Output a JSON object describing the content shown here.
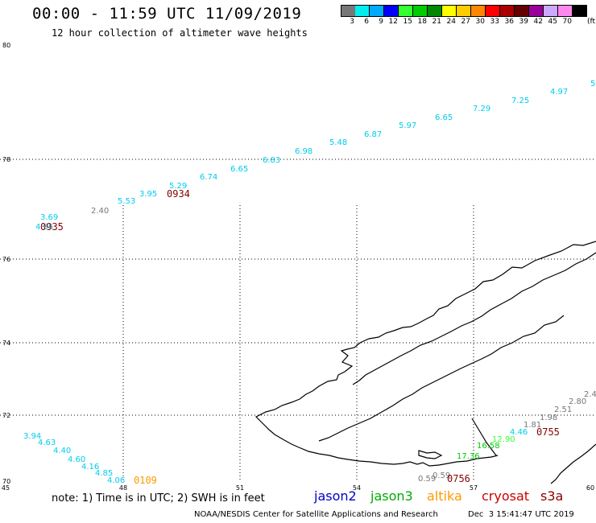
{
  "header": {
    "title": "00:00 - 11:59 UTC 11/09/2019",
    "subtitle": "12 hour collection of altimeter wave heights"
  },
  "color_scale": {
    "unit": "(ft)",
    "bins": [
      {
        "label": "3",
        "color": "#777777"
      },
      {
        "label": "6",
        "color": "#00eeee"
      },
      {
        "label": "9",
        "color": "#00aaff"
      },
      {
        "label": "12",
        "color": "#0000ff"
      },
      {
        "label": "15",
        "color": "#33ff33"
      },
      {
        "label": "18",
        "color": "#00cc00"
      },
      {
        "label": "21",
        "color": "#008800"
      },
      {
        "label": "24",
        "color": "#ffff00"
      },
      {
        "label": "27",
        "color": "#ffcc00"
      },
      {
        "label": "30",
        "color": "#ff8800"
      },
      {
        "label": "33",
        "color": "#ff0000"
      },
      {
        "label": "36",
        "color": "#aa0000"
      },
      {
        "label": "39",
        "color": "#660000"
      },
      {
        "label": "42",
        "color": "#990099"
      },
      {
        "label": "45",
        "color": "#ccaaff"
      },
      {
        "label": "70",
        "color": "#ff88ee"
      },
      {
        "label": "",
        "color": "#000000"
      }
    ]
  },
  "map": {
    "lat_labels": [
      {
        "text": "80",
        "lat": 80
      },
      {
        "text": "78",
        "lat": 78
      },
      {
        "text": "76",
        "lat": 76
      },
      {
        "text": "74",
        "lat": 74
      },
      {
        "text": "72",
        "lat": 72
      },
      {
        "text": "70",
        "lat": 70
      }
    ],
    "lon_labels": [
      {
        "text": "45",
        "lon": 45
      },
      {
        "text": "48",
        "lon": 48
      },
      {
        "text": "51",
        "lon": 51
      },
      {
        "text": "54",
        "lon": 54
      },
      {
        "text": "57",
        "lon": 57
      },
      {
        "text": "60",
        "lon": 60
      }
    ],
    "wave_heights": [
      {
        "text": "5",
        "color": "#00ccee"
      },
      {
        "text": "4.97",
        "color": "#00ccee"
      },
      {
        "text": "7.25",
        "color": "#00ccee"
      },
      {
        "text": "7.29",
        "color": "#00ccee"
      },
      {
        "text": "6.65",
        "color": "#00ccee"
      },
      {
        "text": "5.97",
        "color": "#00ccee"
      },
      {
        "text": "6.87",
        "color": "#00ccee"
      },
      {
        "text": "5.48",
        "color": "#00ccee"
      },
      {
        "text": "6.98",
        "color": "#00ccee"
      },
      {
        "text": "6.83",
        "color": "#00ccee"
      },
      {
        "text": "6.65",
        "color": "#00ccee"
      },
      {
        "text": "6.74",
        "color": "#00ccee"
      },
      {
        "text": "5.29",
        "color": "#00ccee"
      },
      {
        "text": "3.95",
        "color": "#00ccee"
      },
      {
        "text": "5.53",
        "color": "#00ccee"
      },
      {
        "text": "2.40",
        "color": "#777777"
      },
      {
        "text": "3.69",
        "color": "#00ccee"
      },
      {
        "text": "4.55",
        "color": "#00ccee"
      },
      {
        "text": "3.94",
        "color": "#00ccee"
      },
      {
        "text": "4.63",
        "color": "#00ccee"
      },
      {
        "text": "4.40",
        "color": "#00ccee"
      },
      {
        "text": "4.60",
        "color": "#00ccee"
      },
      {
        "text": "4.16",
        "color": "#00ccee"
      },
      {
        "text": "4.85",
        "color": "#00ccee"
      },
      {
        "text": "4.06",
        "color": "#00ccee"
      },
      {
        "text": "2.4",
        "color": "#777777"
      },
      {
        "text": "2.80",
        "color": "#777777"
      },
      {
        "text": "2.51",
        "color": "#777777"
      },
      {
        "text": "1.98",
        "color": "#777777"
      },
      {
        "text": "1.81",
        "color": "#777777"
      },
      {
        "text": "4.46",
        "color": "#00ccee"
      },
      {
        "text": "12.90",
        "color": "#33ff33"
      },
      {
        "text": "16.58",
        "color": "#00cc00"
      },
      {
        "text": "17.36",
        "color": "#00cc00"
      },
      {
        "text": "0.59",
        "color": "#777777"
      },
      {
        "text": "0.59",
        "color": "#777777"
      }
    ],
    "pass_times": [
      {
        "text": "0934",
        "color": "#880000"
      },
      {
        "text": "0935",
        "color": "#880000"
      },
      {
        "text": "0109",
        "color": "#ff9900"
      },
      {
        "text": "0755",
        "color": "#880000"
      },
      {
        "text": "0756",
        "color": "#880000"
      }
    ]
  },
  "footer": {
    "note": "note: 1) Time is in UTC; 2) SWH is in feet",
    "satellites": [
      {
        "label": "jason2",
        "color": "#0000cc"
      },
      {
        "label": "jason3",
        "color": "#00aa00"
      },
      {
        "label": "altika",
        "color": "#ff9900"
      },
      {
        "label": "cryosat",
        "color": "#cc0000"
      },
      {
        "label": "s3a",
        "color": "#880000"
      }
    ],
    "credit": "NOAA/NESDIS Center for Satellite Applications and Research",
    "timestamp": "Dec  3 15:41:47 UTC 2019"
  }
}
